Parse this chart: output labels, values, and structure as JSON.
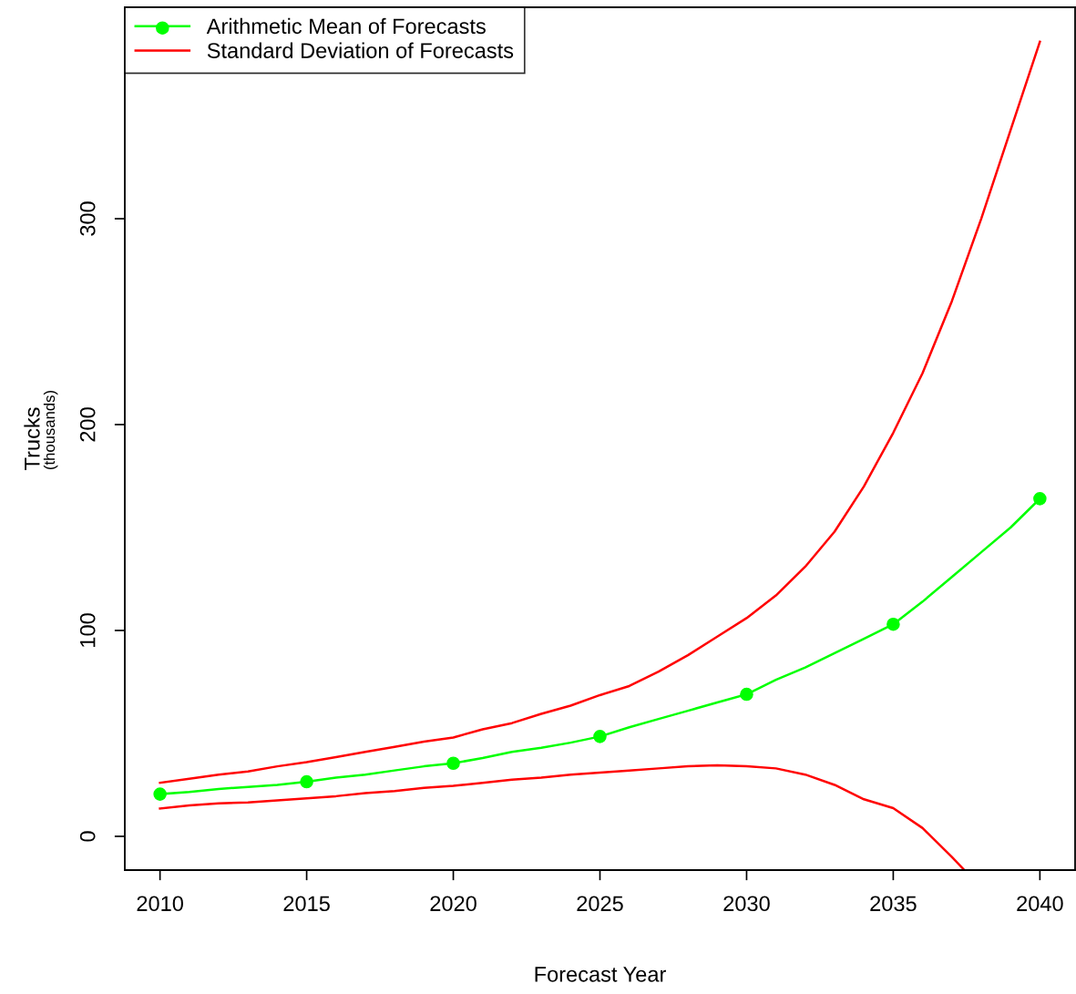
{
  "chart_data": {
    "type": "line",
    "xlabel": "Forecast Year",
    "ylabel": "Trucks",
    "annotations": [
      "(thousands)"
    ],
    "xlim": [
      2008.8,
      2041.2
    ],
    "ylim": [
      -16.4,
      402.7
    ],
    "xticks": [
      2010,
      2015,
      2020,
      2025,
      2030,
      2035,
      2040
    ],
    "yticks": [
      0,
      100,
      200,
      300
    ],
    "grid": false,
    "legend": "top left",
    "line_style": "solid",
    "series": [
      {
        "name": "Arithmetic Mean of Forecasts",
        "color": "#00ff00",
        "x": [
          2010,
          2011,
          2012,
          2013,
          2014,
          2015,
          2016,
          2017,
          2018,
          2019,
          2020,
          2021,
          2022,
          2023,
          2024,
          2025,
          2026,
          2027,
          2028,
          2029,
          2030,
          2031,
          2032,
          2033,
          2034,
          2035,
          2036,
          2037,
          2038,
          2039,
          2040
        ],
        "values": [
          20.5,
          21.5,
          23,
          24,
          25,
          26.5,
          28.5,
          30,
          32,
          34,
          35.5,
          38,
          41,
          43,
          45.5,
          48.5,
          53,
          57,
          61,
          65,
          69,
          76,
          82,
          89,
          96,
          103,
          114,
          126,
          138,
          150,
          164
        ]
      },
      {
        "type": "scatter",
        "marker": "circle",
        "color": "#00ff00",
        "x": [
          2010,
          2015,
          2020,
          2025,
          2030,
          2035,
          2040
        ],
        "values": [
          20.5,
          26.5,
          35.5,
          48.5,
          69,
          103,
          164
        ]
      },
      {
        "name": "Standard Deviation of Forecasts",
        "color": "#ff0000",
        "x": [
          2010,
          2011,
          2012,
          2013,
          2014,
          2015,
          2016,
          2017,
          2018,
          2019,
          2020,
          2021,
          2022,
          2023,
          2024,
          2025,
          2026,
          2027,
          2028,
          2029,
          2030,
          2031,
          2032,
          2033,
          2034,
          2035,
          2036,
          2037,
          2038,
          2039,
          2040
        ],
        "values": [
          26,
          28,
          30,
          31.5,
          34,
          36,
          38.5,
          41,
          43.5,
          46,
          48,
          52,
          55,
          59.5,
          63.5,
          68.6,
          73,
          80,
          88,
          97,
          106,
          117,
          131,
          148,
          170,
          196,
          225,
          260,
          300,
          343,
          386
        ]
      },
      {
        "color": "#ff0000",
        "x": [
          2010,
          2011,
          2012,
          2013,
          2014,
          2015,
          2016,
          2017,
          2018,
          2019,
          2020,
          2021,
          2022,
          2023,
          2024,
          2025,
          2026,
          2027,
          2028,
          2029,
          2030,
          2031,
          2032,
          2033,
          2034,
          2035,
          2036,
          2037,
          2037.4
        ],
        "values": [
          13.5,
          15,
          16,
          16.5,
          17.5,
          18.5,
          19.5,
          21,
          22,
          23.5,
          24.5,
          26,
          27.5,
          28.5,
          30,
          31,
          32,
          33,
          34,
          34.5,
          34,
          33,
          30,
          25,
          18,
          13.7,
          4,
          -10,
          -16
        ]
      }
    ]
  }
}
